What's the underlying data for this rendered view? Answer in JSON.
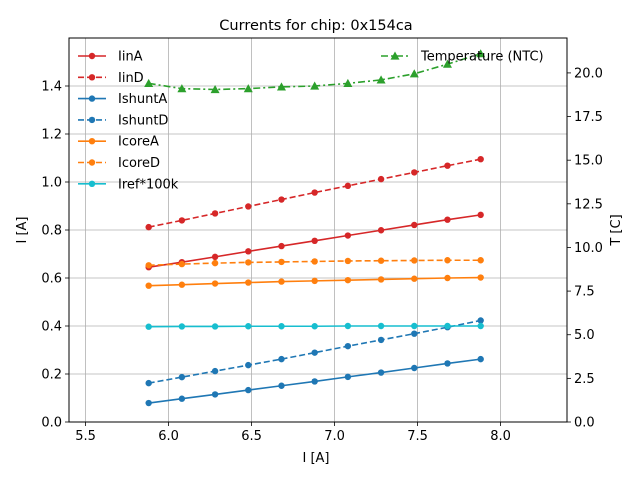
{
  "chart_data": {
    "type": "line",
    "title": "Currents for chip: 0x154ca",
    "xlabel": "I [A]",
    "ylabel": "I [A]",
    "y2label": "T [C]",
    "xlim": [
      5.4,
      8.4
    ],
    "ylim": [
      0,
      1.6
    ],
    "y2lim": [
      0,
      22
    ],
    "grid": true,
    "xticks": [
      5.5,
      6.0,
      6.5,
      7.0,
      7.5,
      8.0
    ],
    "xtick_labels": [
      "5.5",
      "6.0",
      "6.5",
      "7.0",
      "7.5",
      "8.0"
    ],
    "yticks": [
      0.0,
      0.2,
      0.4,
      0.6,
      0.8,
      1.0,
      1.2,
      1.4
    ],
    "ytick_labels": [
      "0.0",
      "0.2",
      "0.4",
      "0.6",
      "0.8",
      "1.0",
      "1.2",
      "1.4"
    ],
    "y2ticks": [
      0,
      2.5,
      5,
      7.5,
      10,
      12.5,
      15,
      17.5,
      20
    ],
    "y2tick_labels": [
      "0.0",
      "2.5",
      "5.0",
      "7.5",
      "10.0",
      "12.5",
      "15.0",
      "17.5",
      "20.0"
    ],
    "x": [
      5.88,
      6.08,
      6.28,
      6.48,
      6.68,
      6.88,
      7.08,
      7.28,
      7.48,
      7.68,
      7.88
    ],
    "legend_left": "upper-left",
    "legend_right": "upper-right",
    "series": [
      {
        "name": "IinA",
        "axis": "left",
        "color": "#d62728",
        "dash": "solid",
        "marker": "circle",
        "legend": "left",
        "values": [
          0.645,
          0.666,
          0.688,
          0.711,
          0.733,
          0.755,
          0.777,
          0.799,
          0.821,
          0.843,
          0.863
        ]
      },
      {
        "name": "IinD",
        "axis": "left",
        "color": "#d62728",
        "dash": "dashed",
        "marker": "circle",
        "legend": "left",
        "values": [
          0.812,
          0.84,
          0.869,
          0.898,
          0.927,
          0.956,
          0.984,
          1.012,
          1.04,
          1.068,
          1.095
        ]
      },
      {
        "name": "IshuntA",
        "axis": "left",
        "color": "#1f77b4",
        "dash": "solid",
        "marker": "circle",
        "legend": "left",
        "values": [
          0.079,
          0.097,
          0.115,
          0.133,
          0.151,
          0.169,
          0.188,
          0.206,
          0.225,
          0.244,
          0.262
        ]
      },
      {
        "name": "IshuntD",
        "axis": "left",
        "color": "#1f77b4",
        "dash": "dashed",
        "marker": "circle",
        "legend": "left",
        "values": [
          0.162,
          0.187,
          0.212,
          0.237,
          0.262,
          0.289,
          0.316,
          0.342,
          0.368,
          0.395,
          0.423
        ]
      },
      {
        "name": "IcoreA",
        "axis": "left",
        "color": "#ff7f0e",
        "dash": "solid",
        "marker": "circle",
        "legend": "left",
        "values": [
          0.568,
          0.572,
          0.577,
          0.581,
          0.585,
          0.588,
          0.591,
          0.594,
          0.597,
          0.6,
          0.602
        ]
      },
      {
        "name": "IcoreD",
        "axis": "left",
        "color": "#ff7f0e",
        "dash": "dashed",
        "marker": "circle",
        "legend": "left",
        "values": [
          0.653,
          0.658,
          0.662,
          0.665,
          0.667,
          0.669,
          0.671,
          0.672,
          0.673,
          0.674,
          0.674
        ]
      },
      {
        "name": "Iref*100k",
        "axis": "left",
        "color": "#17becf",
        "dash": "solid",
        "marker": "circle",
        "legend": "left",
        "values": [
          0.397,
          0.398,
          0.398,
          0.399,
          0.399,
          0.399,
          0.4,
          0.4,
          0.4,
          0.4,
          0.4
        ]
      },
      {
        "name": "Temperature (NTC)",
        "axis": "right",
        "color": "#2ca02c",
        "dash": "dashdot",
        "marker": "triangle",
        "legend": "right",
        "values": [
          19.4,
          19.1,
          19.05,
          19.1,
          19.2,
          19.25,
          19.4,
          19.6,
          19.95,
          20.5,
          21.1
        ]
      }
    ]
  }
}
